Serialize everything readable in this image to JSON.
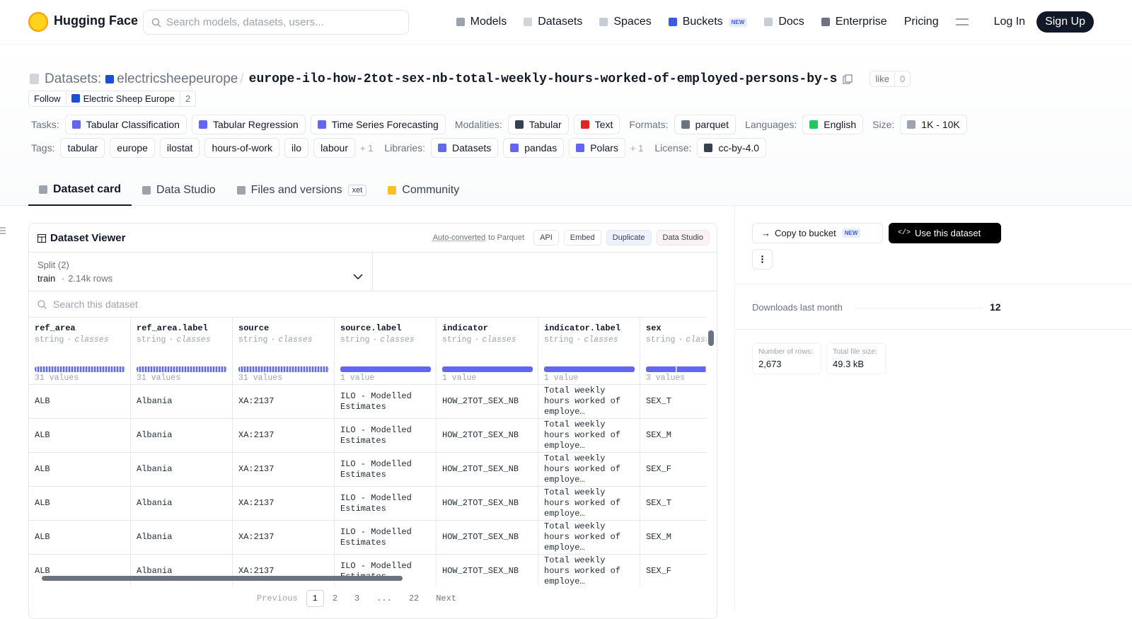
{
  "nav": {
    "brand": "Hugging Face",
    "search_placeholder": "Search models, datasets, users...",
    "links": [
      {
        "text": "Models",
        "color": "#9ca3af"
      },
      {
        "text": "Datasets",
        "color": "#d1d5db"
      },
      {
        "text": "Spaces",
        "color": "#c7cdd6"
      },
      {
        "text": "Buckets",
        "color": "#3b5bdb",
        "badge": "NEW"
      },
      {
        "text": "Docs",
        "color": "#c7cdd6"
      },
      {
        "text": "Enterprise",
        "color": "#6b7280"
      },
      {
        "text": "Pricing"
      }
    ],
    "login": "Log In",
    "signup": "Sign Up"
  },
  "header": {
    "prefix": "Datasets:",
    "owner": "electricsheepeurope",
    "separator": "/",
    "name": "europe-ilo-how-2tot-sex-nb-total-weekly-hours-worked-of-employed-persons-by-s",
    "like": "like",
    "like_count": 0,
    "follow": "Follow",
    "org": "Electric Sheep Europe",
    "org_count": 2
  },
  "meta_rows": [
    [
      {
        "label": "Tasks:",
        "chips": [
          "Tabular Classification",
          "Tabular Regression",
          "Time Series Forecasting"
        ]
      },
      {
        "label": "Modalities:",
        "chips": [
          "Tabular",
          "Text"
        ]
      },
      {
        "label": "Formats:",
        "chips": [
          "parquet"
        ]
      },
      {
        "label": "Languages:",
        "chips": [
          "English"
        ]
      },
      {
        "label": "Size:",
        "chips": [
          "1K - 10K"
        ]
      }
    ],
    [
      {
        "label": "Tags:",
        "chips": [
          "tabular",
          "europe",
          "ilostat",
          "hours-of-work",
          "ilo",
          "labour"
        ],
        "more": "+ 1"
      },
      {
        "label": "Libraries:",
        "chips": [
          "Datasets",
          "pandas",
          "Polars"
        ],
        "more": "+ 1"
      },
      {
        "label": "License:",
        "chips": [
          "cc-by-4.0"
        ]
      }
    ]
  ],
  "tabs": [
    {
      "text": "Dataset card"
    },
    {
      "text": "Data Studio"
    },
    {
      "text": "Files and versions",
      "badge": "xet"
    },
    {
      "text": "Community"
    }
  ],
  "viewer": {
    "title": "Dataset Viewer",
    "auto_converted": "Auto-converted",
    "to_parquet": "to Parquet",
    "buttons": [
      "API",
      "Embed",
      "Duplicate",
      "Data Studio"
    ],
    "split_label": "Split (2)",
    "split": "train",
    "dot": "·",
    "split_rows": "2.14k rows",
    "search_placeholder": "Search this dataset",
    "columns": [
      {
        "name": "ref_area",
        "type": "string",
        "kind": "classes",
        "summary": "31 values"
      },
      {
        "name": "ref_area.label",
        "type": "string",
        "kind": "classes",
        "summary": "31 values"
      },
      {
        "name": "source",
        "type": "string",
        "kind": "classes",
        "summary": "31 values"
      },
      {
        "name": "source.label",
        "type": "string",
        "kind": "classes",
        "summary": "1 value"
      },
      {
        "name": "indicator",
        "type": "string",
        "kind": "classes",
        "summary": "1 value"
      },
      {
        "name": "indicator.label",
        "type": "string",
        "kind": "classes",
        "summary": "1 value"
      },
      {
        "name": "sex",
        "type": "string",
        "kind": "classes",
        "summary": "3 values"
      }
    ],
    "rows": [
      [
        "ALB",
        "Albania",
        "XA:2137",
        "ILO - Modelled Estimates",
        "HOW_2TOT_SEX_NB",
        "Total weekly hours worked of employe…",
        "SEX_T"
      ],
      [
        "ALB",
        "Albania",
        "XA:2137",
        "ILO - Modelled Estimates",
        "HOW_2TOT_SEX_NB",
        "Total weekly hours worked of employe…",
        "SEX_M"
      ],
      [
        "ALB",
        "Albania",
        "XA:2137",
        "ILO - Modelled Estimates",
        "HOW_2TOT_SEX_NB",
        "Total weekly hours worked of employe…",
        "SEX_F"
      ],
      [
        "ALB",
        "Albania",
        "XA:2137",
        "ILO - Modelled Estimates",
        "HOW_2TOT_SEX_NB",
        "Total weekly hours worked of employe…",
        "SEX_T"
      ],
      [
        "ALB",
        "Albania",
        "XA:2137",
        "ILO - Modelled Estimates",
        "HOW_2TOT_SEX_NB",
        "Total weekly hours worked of employe…",
        "SEX_M"
      ],
      [
        "ALB",
        "Albania",
        "XA:2137",
        "ILO - Modelled Estimates",
        "HOW_2TOT_SEX_NB",
        "Total weekly hours worked of employe…",
        "SEX_F"
      ]
    ],
    "pagination": {
      "previous": "Previous",
      "pages": [
        1,
        2,
        3,
        "...",
        22
      ],
      "next": "Next"
    }
  },
  "sidebar": {
    "copy": "Copy to bucket",
    "copy_badge": "NEW",
    "use": "Use this dataset",
    "downloads_label": "Downloads last month",
    "downloads": 12,
    "stats": [
      {
        "label": "Number of rows:",
        "value": "2,673"
      },
      {
        "label": "Total file size:",
        "value": "49.3 kB"
      }
    ]
  }
}
